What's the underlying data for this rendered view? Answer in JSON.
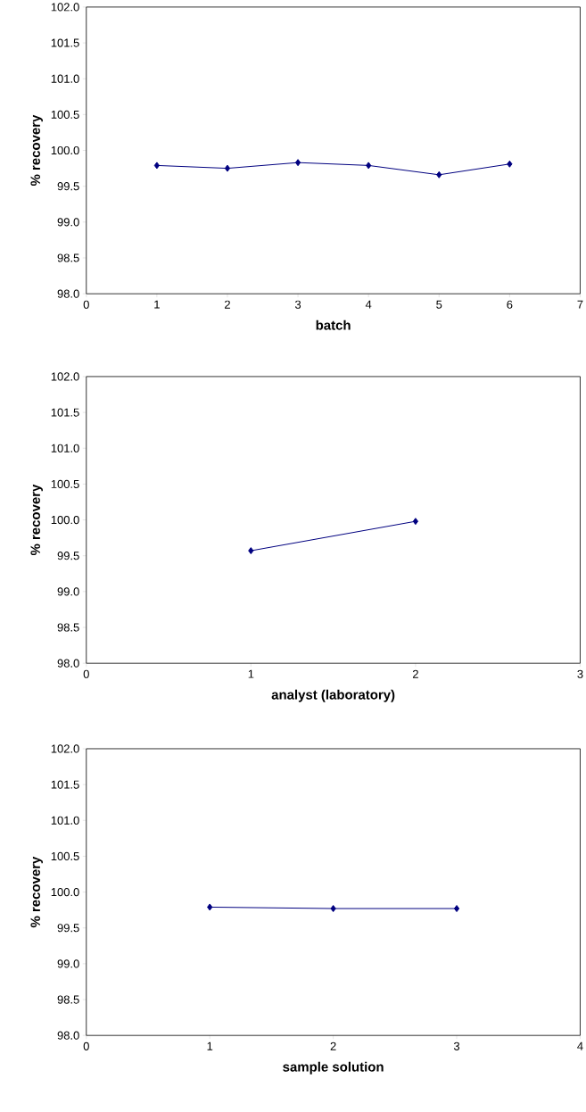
{
  "chart_data": [
    {
      "type": "line",
      "xlabel": "batch",
      "ylabel": "% recovery",
      "color": "#000080",
      "marker": "diamond",
      "line_style": "solid",
      "x": [
        1,
        2,
        3,
        4,
        5,
        6
      ],
      "values": [
        99.79,
        99.75,
        99.83,
        99.79,
        99.66,
        99.81
      ],
      "xlim": [
        0,
        7
      ],
      "xticks": [
        0,
        1,
        2,
        3,
        4,
        5,
        6,
        7
      ],
      "ylim": [
        98,
        102
      ],
      "yticks": [
        {
          "value": 98,
          "label": "98.0"
        },
        {
          "value": 98.5,
          "label": "98.5"
        },
        {
          "value": 99,
          "label": "99.0"
        },
        {
          "value": 99.5,
          "label": "99.5"
        },
        {
          "value": 100,
          "label": "100.0"
        },
        {
          "value": 100.5,
          "label": "100.5"
        },
        {
          "value": 101,
          "label": "101.0"
        },
        {
          "value": 101.5,
          "label": "101.5"
        },
        {
          "value": 102,
          "label": "102.0"
        }
      ]
    },
    {
      "type": "line",
      "xlabel": "analyst (laboratory)",
      "ylabel": "% recovery",
      "color": "#000080",
      "marker": "diamond",
      "line_style": "solid",
      "x": [
        1,
        2
      ],
      "values": [
        99.57,
        99.98
      ],
      "xlim": [
        0,
        3
      ],
      "xticks": [
        0,
        1,
        2,
        3
      ],
      "ylim": [
        98,
        102
      ],
      "yticks": [
        {
          "value": 98,
          "label": "98.0"
        },
        {
          "value": 98.5,
          "label": "98.5"
        },
        {
          "value": 99,
          "label": "99.0"
        },
        {
          "value": 99.5,
          "label": "99.5"
        },
        {
          "value": 100,
          "label": "100.0"
        },
        {
          "value": 100.5,
          "label": "100.5"
        },
        {
          "value": 101,
          "label": "101.0"
        },
        {
          "value": 101.5,
          "label": "101.5"
        },
        {
          "value": 102,
          "label": "102.0"
        }
      ]
    },
    {
      "type": "line",
      "xlabel": "sample solution",
      "ylabel": "% recovery",
      "color": "#000080",
      "marker": "diamond",
      "line_style": "solid",
      "x": [
        1,
        2,
        3
      ],
      "values": [
        99.79,
        99.77,
        99.77
      ],
      "xlim": [
        0,
        4
      ],
      "xticks": [
        0,
        1,
        2,
        3,
        4
      ],
      "ylim": [
        98,
        102
      ],
      "yticks": [
        {
          "value": 98,
          "label": "98.0"
        },
        {
          "value": 98.5,
          "label": "98.5"
        },
        {
          "value": 99,
          "label": "99.0"
        },
        {
          "value": 99.5,
          "label": "99.5"
        },
        {
          "value": 100,
          "label": "100.0"
        },
        {
          "value": 100.5,
          "label": "100.5"
        },
        {
          "value": 101,
          "label": "101.0"
        },
        {
          "value": 101.5,
          "label": "101.5"
        },
        {
          "value": 102,
          "label": "102.0"
        }
      ]
    }
  ]
}
